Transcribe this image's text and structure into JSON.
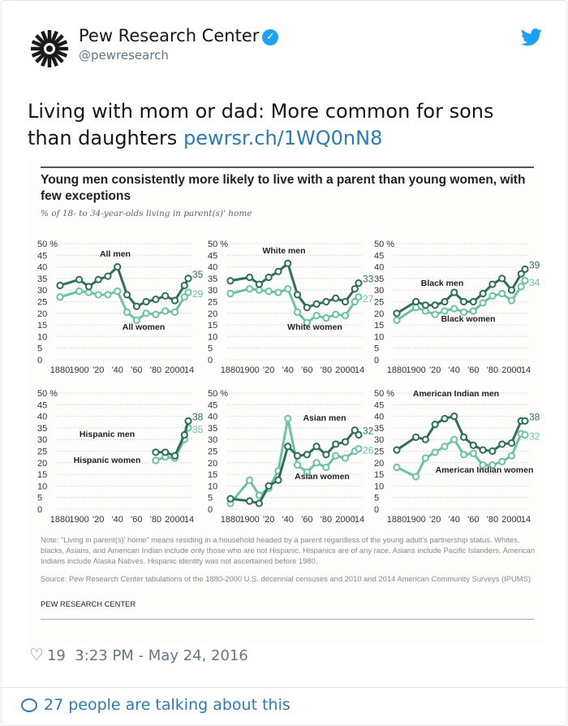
{
  "tweet": {
    "author_name": "Pew Research Center",
    "handle": "@pewresearch",
    "text": "Living with mom or dad: More common for sons than daughters",
    "link": "pewrsr.ch/1WQ0nN8",
    "likes": "19",
    "timestamp": "3:23 PM - May 24, 2016",
    "talking": "27 people are talking about this",
    "icons": [
      "verified-badge-icon",
      "twitter-bird-icon",
      "heart-icon",
      "speech-bubble-icon"
    ]
  },
  "colors": {
    "men": "#2f6e58",
    "women": "#6cc3a2",
    "link": "#2b7bb9",
    "twitter": "#1da1f2"
  },
  "chart_title": "Young men consistently more likely to live with a parent than young women, with few exceptions",
  "chart_subtitle": "% of 18- to 34-year-olds living in parent(s)' home",
  "note": "Note: “Living in parent(s)' home” means residing in a household headed by a parent regardless of the young adult's partnership status. Whites, blacks, Asians, and American Indian include only those who are not Hispanic. Hispanics are of any race. Asians include Pacific Islanders. American Indians include Alaska Natives. Hispanic identity was not ascertained before 1980.",
  "source": "Source: Pew Research Center tabulations of the 1880-2000 U.S. decennial censuses and 2010 and 2014 American Community Surveys (IPUMS)",
  "brand": "PEW RESEARCH CENTER",
  "chart_data": [
    {
      "type": "line",
      "ylim": [
        0,
        50
      ],
      "yticks": [
        "50 %",
        "45",
        "40",
        "35",
        "30",
        "25",
        "20",
        "15",
        "10",
        "5",
        "0"
      ],
      "xticks": [
        "1880",
        "1900",
        "'20",
        "'40",
        "'60",
        "'80",
        "2000",
        "'14"
      ],
      "x": [
        1880,
        1900,
        1910,
        1920,
        1930,
        1940,
        1950,
        1960,
        1970,
        1980,
        1990,
        2000,
        2010,
        2014
      ],
      "series": [
        {
          "name": "All men",
          "values": [
            32,
            34.5,
            31.5,
            34.5,
            36,
            40,
            28,
            23,
            25,
            26,
            27.5,
            25.5,
            32,
            35
          ],
          "end_label": "35"
        },
        {
          "name": "All women",
          "values": [
            27,
            29.5,
            29,
            28,
            28,
            29.5,
            20.5,
            17,
            20,
            19.5,
            21,
            20.5,
            27,
            29
          ],
          "end_label": "29"
        }
      ]
    },
    {
      "type": "line",
      "ylim": [
        0,
        50
      ],
      "yticks": [
        "50 %",
        "45",
        "40",
        "35",
        "30",
        "25",
        "20",
        "15",
        "10",
        "5",
        "0"
      ],
      "xticks": [
        "1880",
        "1900",
        "'20",
        "'40",
        "'60",
        "'80",
        "2000",
        "'14"
      ],
      "x": [
        1880,
        1900,
        1910,
        1920,
        1930,
        1940,
        1950,
        1960,
        1970,
        1980,
        1990,
        2000,
        2010,
        2014
      ],
      "series": [
        {
          "name": "White men",
          "values": [
            34,
            35.5,
            32.5,
            35.5,
            38,
            41.5,
            28,
            22.5,
            24,
            25,
            26.5,
            25,
            30.5,
            33
          ],
          "end_label": "33"
        },
        {
          "name": "White women",
          "values": [
            28.5,
            30.5,
            30,
            29.5,
            29,
            30.5,
            20.5,
            16,
            19,
            18,
            19.5,
            19,
            25,
            27
          ],
          "end_label": "27"
        }
      ]
    },
    {
      "type": "line",
      "ylim": [
        0,
        50
      ],
      "yticks": [
        "50 %",
        "45",
        "40",
        "35",
        "30",
        "25",
        "20",
        "15",
        "10",
        "5",
        "0"
      ],
      "xticks": [
        "1880",
        "1900",
        "'20",
        "'40",
        "'60",
        "'80",
        "2000",
        "'14"
      ],
      "x": [
        1880,
        1900,
        1910,
        1920,
        1930,
        1940,
        1950,
        1960,
        1970,
        1980,
        1990,
        2000,
        2010,
        2014
      ],
      "series": [
        {
          "name": "Black men",
          "values": [
            20,
            25,
            23.5,
            23.5,
            25,
            29,
            25,
            25,
            28.5,
            32.5,
            35,
            30,
            37,
            39
          ],
          "end_label": "39"
        },
        {
          "name": "Black women",
          "values": [
            17,
            22.5,
            21,
            19.5,
            21,
            22,
            20.5,
            21,
            24.5,
            27.5,
            28.5,
            25.5,
            31.5,
            34
          ],
          "end_label": "34"
        }
      ]
    },
    {
      "type": "line",
      "ylim": [
        0,
        50
      ],
      "yticks": [
        "50 %",
        "45",
        "40",
        "35",
        "30",
        "25",
        "20",
        "15",
        "10",
        "5",
        "0"
      ],
      "xticks": [
        "1880",
        "1900",
        "'20",
        "'40",
        "'60",
        "'80",
        "2000",
        "'14"
      ],
      "x": [
        1980,
        1990,
        2000,
        2010,
        2014
      ],
      "series": [
        {
          "name": "Hispanic men",
          "values": [
            24.5,
            24.5,
            23,
            32,
            38
          ],
          "end_label": "38"
        },
        {
          "name": "Hispanic women",
          "values": [
            21,
            22.5,
            22,
            30,
            35
          ],
          "end_label": "35"
        }
      ]
    },
    {
      "type": "line",
      "ylim": [
        0,
        50
      ],
      "yticks": [
        "50 %",
        "45",
        "40",
        "35",
        "30",
        "25",
        "20",
        "15",
        "10",
        "5",
        "0"
      ],
      "xticks": [
        "1880",
        "1900",
        "'20",
        "'40",
        "'60",
        "'80",
        "2000",
        "'14"
      ],
      "x": [
        1880,
        1900,
        1910,
        1920,
        1930,
        1940,
        1950,
        1960,
        1970,
        1980,
        1990,
        2000,
        2010,
        2014
      ],
      "series": [
        {
          "name": "Asian men",
          "values": [
            4.5,
            3.5,
            2.5,
            10,
            12.5,
            27,
            23,
            23.5,
            27,
            23.5,
            28,
            29,
            34,
            32
          ],
          "end_label": "32"
        },
        {
          "name": "Asian women",
          "values": [
            2.5,
            12.5,
            6,
            9,
            16.5,
            39,
            19,
            16,
            20,
            18,
            23,
            22,
            25,
            26
          ],
          "end_label": "26"
        }
      ]
    },
    {
      "type": "line",
      "ylim": [
        0,
        50
      ],
      "yticks": [
        "50 %",
        "45",
        "40",
        "35",
        "30",
        "25",
        "20",
        "15",
        "10",
        "5",
        "0"
      ],
      "xticks": [
        "1880",
        "1900",
        "'20",
        "'40",
        "'60",
        "'80",
        "2000",
        "'14"
      ],
      "x": [
        1880,
        1900,
        1910,
        1920,
        1930,
        1940,
        1950,
        1960,
        1970,
        1980,
        1990,
        2000,
        2010,
        2014
      ],
      "series": [
        {
          "name": "American Indian men",
          "values": [
            25.5,
            31,
            30,
            36.5,
            39,
            40,
            31,
            27.5,
            25.5,
            25,
            28,
            28.5,
            38,
            38
          ],
          "end_label": "38"
        },
        {
          "name": "American Indian women",
          "values": [
            18,
            14,
            22,
            24.5,
            27,
            30,
            23.5,
            24,
            19,
            19,
            20.5,
            23,
            32.5,
            32
          ],
          "end_label": "32"
        }
      ]
    }
  ]
}
